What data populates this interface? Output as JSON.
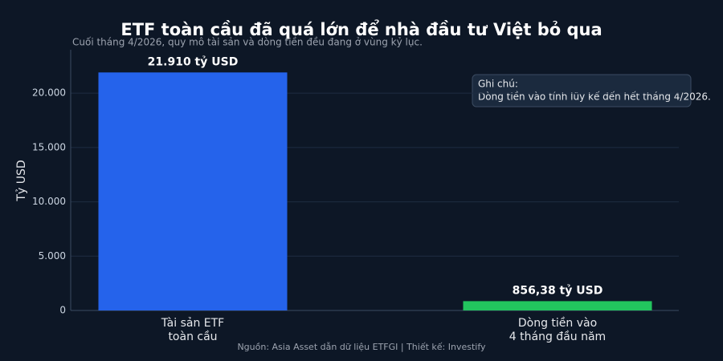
{
  "chart_data": {
    "type": "bar",
    "title": "ETF toàn cầu đã quá lớn để nhà đầu tư Việt bỏ qua",
    "subtitle": "Cuối tháng 4/2026, quy mô tài sản và dòng tiền đều đang ở vùng kỷ lục.",
    "categories": [
      "Tài sản ETF\ntoàn cầu",
      "Dòng tiền vào\n4 tháng đầu năm"
    ],
    "values": [
      21910,
      856.38
    ],
    "value_labels": [
      "21.910 tỷ USD",
      "856,38 tỷ USD"
    ],
    "colors": [
      "#2563eb",
      "#22c55e"
    ],
    "y_label": "Tỷ USD",
    "ylim": [
      0,
      24000
    ],
    "yticks": [
      0,
      {
        "value": 5000,
        "label": "5.000"
      },
      {
        "value": 10000,
        "label": "10.000"
      },
      {
        "value": 15000,
        "label": "15.000"
      },
      {
        "value": 20000,
        "label": "20.000"
      }
    ],
    "grid": true,
    "note": [
      "Ghi chú:",
      "Dòng tiền vào tính lũy kế đến hết tháng 4/2026."
    ],
    "source": "Nguồn: Asia Asset dẫn dữ liệu ETFGI | Thiết kế: Investify"
  }
}
